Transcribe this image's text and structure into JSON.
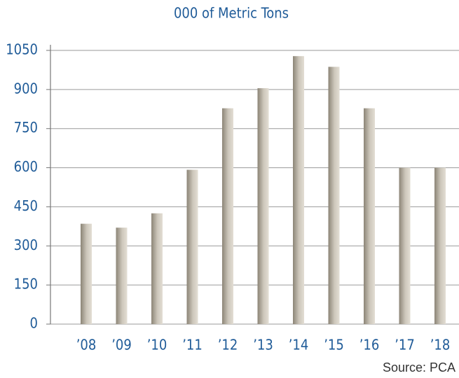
{
  "chart_data": {
    "type": "bar",
    "title": "000 of Metric Tons",
    "categories": [
      "’08",
      "’09",
      "’10",
      "’11",
      "’12",
      "’13",
      "’14",
      "’15",
      "’16",
      "’17",
      "’18"
    ],
    "values": [
      385,
      370,
      425,
      592,
      828,
      905,
      1028,
      987,
      828,
      600,
      600
    ],
    "color": "#a9a294",
    "ylim": [
      0,
      1050
    ],
    "yticks": [
      0,
      150,
      300,
      450,
      600,
      750,
      900,
      1050
    ],
    "grid": true,
    "source": "Source: PCA"
  }
}
